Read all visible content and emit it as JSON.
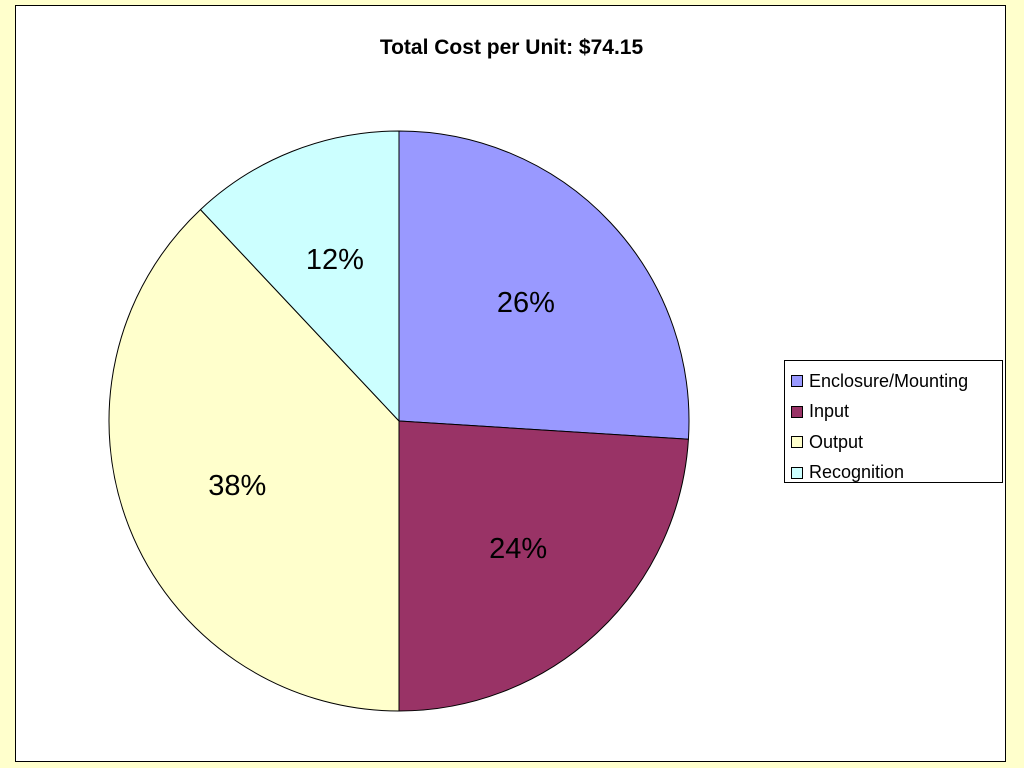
{
  "chart_data": {
    "type": "pie",
    "title": "Total Cost per Unit: $74.15",
    "categories": [
      "Enclosure/Mounting",
      "Input",
      "Output",
      "Recognition"
    ],
    "values": [
      26,
      24,
      38,
      12
    ],
    "labels": [
      "26%",
      "24%",
      "38%",
      "12%"
    ],
    "colors": [
      "#9999ff",
      "#993366",
      "#ffffcc",
      "#ccffff"
    ],
    "start_angle_deg": 0,
    "direction": "clockwise",
    "legend": "right"
  },
  "page": {
    "background": "#ffffcc"
  }
}
